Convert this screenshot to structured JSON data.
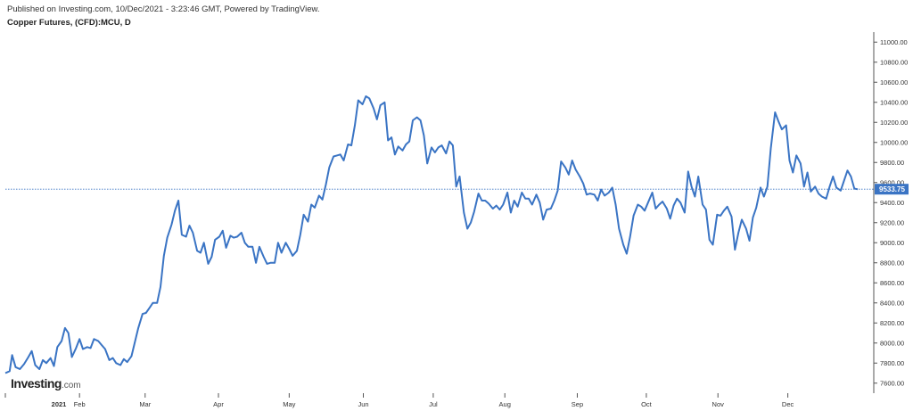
{
  "header": {
    "published": "Published on Investing.com, 10/Dec/2021 - 3:23:46 GMT, Powered by TradingView.",
    "title": "Copper Futures, (CFD):MCU, D"
  },
  "logo": {
    "main": "Investing",
    "suffix": ".com"
  },
  "colors": {
    "line": "#3a74c4",
    "price_label_bg": "#3a74c4",
    "axis": "#555555",
    "last_price_line": "#3a74c4"
  },
  "chart_data": {
    "type": "line",
    "title": "Copper Futures, (CFD):MCU, D",
    "xlabel": "",
    "ylabel": "",
    "ylim": [
      7500,
      11100
    ],
    "yticks": [
      "7600.00",
      "7800.00",
      "8000.00",
      "8200.00",
      "8400.00",
      "8600.00",
      "8800.00",
      "9000.00",
      "9200.00",
      "9400.00",
      "9600.00",
      "9800.00",
      "10000.00",
      "10200.00",
      "10400.00",
      "10600.00",
      "10800.00",
      "11000.00"
    ],
    "xlim": [
      0,
      1
    ],
    "xticks": [
      {
        "label": "2021",
        "pos": 0.0,
        "bold": true
      },
      {
        "label": "Feb",
        "pos": 0.087
      },
      {
        "label": "Mar",
        "pos": 0.164
      },
      {
        "label": "Apr",
        "pos": 0.25
      },
      {
        "label": "May",
        "pos": 0.333
      },
      {
        "label": "Jun",
        "pos": 0.42
      },
      {
        "label": "Jul",
        "pos": 0.502
      },
      {
        "label": "Aug",
        "pos": 0.586
      },
      {
        "label": "Sep",
        "pos": 0.671
      },
      {
        "label": "Oct",
        "pos": 0.752
      },
      {
        "label": "Nov",
        "pos": 0.836
      },
      {
        "label": "Dec",
        "pos": 0.918
      }
    ],
    "last_price": "9533.75",
    "series": [
      {
        "values": [
          [
            0.0,
            7700
          ],
          [
            0.005,
            7720
          ],
          [
            0.008,
            7880
          ],
          [
            0.012,
            7760
          ],
          [
            0.017,
            7740
          ],
          [
            0.022,
            7790
          ],
          [
            0.027,
            7860
          ],
          [
            0.031,
            7920
          ],
          [
            0.035,
            7780
          ],
          [
            0.04,
            7740
          ],
          [
            0.044,
            7830
          ],
          [
            0.048,
            7800
          ],
          [
            0.053,
            7850
          ],
          [
            0.057,
            7770
          ],
          [
            0.061,
            7960
          ],
          [
            0.066,
            8020
          ],
          [
            0.07,
            8150
          ],
          [
            0.074,
            8100
          ],
          [
            0.078,
            7860
          ],
          [
            0.083,
            7950
          ],
          [
            0.087,
            8040
          ],
          [
            0.091,
            7940
          ],
          [
            0.096,
            7960
          ],
          [
            0.1,
            7950
          ],
          [
            0.104,
            8040
          ],
          [
            0.109,
            8020
          ],
          [
            0.113,
            7980
          ],
          [
            0.117,
            7940
          ],
          [
            0.122,
            7830
          ],
          [
            0.126,
            7850
          ],
          [
            0.13,
            7800
          ],
          [
            0.135,
            7780
          ],
          [
            0.139,
            7840
          ],
          [
            0.143,
            7810
          ],
          [
            0.148,
            7870
          ],
          [
            0.152,
            8010
          ],
          [
            0.156,
            8150
          ],
          [
            0.161,
            8290
          ],
          [
            0.165,
            8300
          ],
          [
            0.169,
            8350
          ],
          [
            0.173,
            8400
          ],
          [
            0.178,
            8400
          ],
          [
            0.182,
            8560
          ],
          [
            0.186,
            8870
          ],
          [
            0.19,
            9050
          ],
          [
            0.195,
            9180
          ],
          [
            0.199,
            9320
          ],
          [
            0.203,
            9420
          ],
          [
            0.207,
            9080
          ],
          [
            0.212,
            9060
          ],
          [
            0.216,
            9170
          ],
          [
            0.22,
            9100
          ],
          [
            0.225,
            8920
          ],
          [
            0.229,
            8900
          ],
          [
            0.233,
            9000
          ],
          [
            0.238,
            8790
          ],
          [
            0.242,
            8860
          ],
          [
            0.246,
            9030
          ],
          [
            0.251,
            9060
          ],
          [
            0.255,
            9120
          ],
          [
            0.259,
            8950
          ],
          [
            0.264,
            9070
          ],
          [
            0.268,
            9050
          ],
          [
            0.272,
            9060
          ],
          [
            0.277,
            9100
          ],
          [
            0.281,
            9000
          ],
          [
            0.285,
            8960
          ],
          [
            0.29,
            8960
          ],
          [
            0.294,
            8800
          ],
          [
            0.298,
            8960
          ],
          [
            0.303,
            8860
          ],
          [
            0.307,
            8790
          ],
          [
            0.311,
            8800
          ],
          [
            0.316,
            8800
          ],
          [
            0.32,
            9000
          ],
          [
            0.324,
            8900
          ],
          [
            0.329,
            9000
          ],
          [
            0.333,
            8940
          ],
          [
            0.337,
            8870
          ],
          [
            0.342,
            8920
          ],
          [
            0.346,
            9080
          ],
          [
            0.35,
            9280
          ],
          [
            0.355,
            9210
          ],
          [
            0.359,
            9380
          ],
          [
            0.363,
            9350
          ],
          [
            0.368,
            9470
          ],
          [
            0.372,
            9430
          ],
          [
            0.376,
            9580
          ],
          [
            0.38,
            9750
          ],
          [
            0.385,
            9860
          ],
          [
            0.389,
            9870
          ],
          [
            0.393,
            9880
          ],
          [
            0.397,
            9820
          ],
          [
            0.402,
            9980
          ],
          [
            0.406,
            9970
          ],
          [
            0.41,
            10170
          ],
          [
            0.414,
            10420
          ],
          [
            0.419,
            10380
          ],
          [
            0.423,
            10460
          ],
          [
            0.427,
            10440
          ],
          [
            0.432,
            10340
          ],
          [
            0.436,
            10230
          ],
          [
            0.44,
            10370
          ],
          [
            0.445,
            10400
          ],
          [
            0.449,
            10020
          ],
          [
            0.453,
            10050
          ],
          [
            0.457,
            9880
          ],
          [
            0.461,
            9960
          ],
          [
            0.466,
            9920
          ],
          [
            0.47,
            9980
          ],
          [
            0.474,
            10010
          ],
          [
            0.478,
            10220
          ],
          [
            0.483,
            10250
          ],
          [
            0.487,
            10220
          ],
          [
            0.491,
            10070
          ],
          [
            0.495,
            9790
          ],
          [
            0.5,
            9950
          ],
          [
            0.504,
            9900
          ],
          [
            0.508,
            9950
          ],
          [
            0.512,
            9970
          ],
          [
            0.517,
            9890
          ],
          [
            0.521,
            10010
          ],
          [
            0.525,
            9970
          ],
          [
            0.529,
            9560
          ],
          [
            0.533,
            9660
          ],
          [
            0.538,
            9300
          ],
          [
            0.542,
            9140
          ],
          [
            0.546,
            9200
          ],
          [
            0.55,
            9310
          ],
          [
            0.555,
            9490
          ],
          [
            0.559,
            9420
          ],
          [
            0.563,
            9420
          ],
          [
            0.567,
            9390
          ],
          [
            0.572,
            9340
          ],
          [
            0.576,
            9370
          ],
          [
            0.58,
            9330
          ],
          [
            0.584,
            9380
          ],
          [
            0.589,
            9500
          ],
          [
            0.593,
            9300
          ],
          [
            0.597,
            9420
          ],
          [
            0.601,
            9360
          ],
          [
            0.606,
            9500
          ],
          [
            0.61,
            9440
          ],
          [
            0.614,
            9440
          ],
          [
            0.618,
            9380
          ],
          [
            0.623,
            9480
          ],
          [
            0.627,
            9400
          ],
          [
            0.631,
            9230
          ],
          [
            0.635,
            9330
          ],
          [
            0.64,
            9340
          ],
          [
            0.644,
            9420
          ],
          [
            0.648,
            9520
          ],
          [
            0.652,
            9810
          ],
          [
            0.657,
            9750
          ],
          [
            0.661,
            9680
          ],
          [
            0.665,
            9820
          ],
          [
            0.669,
            9730
          ],
          [
            0.674,
            9660
          ],
          [
            0.678,
            9590
          ],
          [
            0.682,
            9480
          ],
          [
            0.686,
            9490
          ],
          [
            0.691,
            9480
          ],
          [
            0.695,
            9420
          ],
          [
            0.699,
            9530
          ],
          [
            0.703,
            9470
          ],
          [
            0.708,
            9500
          ],
          [
            0.712,
            9550
          ],
          [
            0.716,
            9380
          ],
          [
            0.72,
            9140
          ],
          [
            0.725,
            8980
          ],
          [
            0.729,
            8890
          ],
          [
            0.733,
            9060
          ],
          [
            0.737,
            9270
          ],
          [
            0.742,
            9380
          ],
          [
            0.746,
            9360
          ],
          [
            0.75,
            9320
          ],
          [
            0.754,
            9400
          ],
          [
            0.759,
            9500
          ],
          [
            0.763,
            9340
          ],
          [
            0.767,
            9380
          ],
          [
            0.771,
            9410
          ],
          [
            0.776,
            9340
          ],
          [
            0.78,
            9240
          ],
          [
            0.784,
            9370
          ],
          [
            0.788,
            9440
          ],
          [
            0.792,
            9400
          ],
          [
            0.797,
            9300
          ],
          [
            0.801,
            9710
          ],
          [
            0.805,
            9560
          ],
          [
            0.809,
            9460
          ],
          [
            0.813,
            9660
          ],
          [
            0.818,
            9380
          ],
          [
            0.822,
            9330
          ],
          [
            0.826,
            9030
          ],
          [
            0.83,
            8980
          ],
          [
            0.835,
            9280
          ],
          [
            0.839,
            9270
          ],
          [
            0.843,
            9320
          ],
          [
            0.847,
            9360
          ],
          [
            0.852,
            9260
          ],
          [
            0.856,
            8930
          ],
          [
            0.86,
            9100
          ],
          [
            0.864,
            9230
          ],
          [
            0.869,
            9140
          ],
          [
            0.873,
            9020
          ],
          [
            0.877,
            9250
          ],
          [
            0.881,
            9350
          ],
          [
            0.886,
            9550
          ],
          [
            0.89,
            9460
          ],
          [
            0.894,
            9560
          ],
          [
            0.898,
            9940
          ],
          [
            0.903,
            10300
          ],
          [
            0.907,
            10210
          ],
          [
            0.911,
            10130
          ],
          [
            0.916,
            10170
          ],
          [
            0.92,
            9820
          ],
          [
            0.924,
            9700
          ],
          [
            0.928,
            9870
          ],
          [
            0.933,
            9790
          ],
          [
            0.937,
            9560
          ],
          [
            0.941,
            9700
          ],
          [
            0.945,
            9510
          ],
          [
            0.95,
            9560
          ],
          [
            0.954,
            9490
          ],
          [
            0.958,
            9460
          ],
          [
            0.963,
            9440
          ],
          [
            0.967,
            9560
          ],
          [
            0.971,
            9660
          ],
          [
            0.975,
            9550
          ],
          [
            0.98,
            9520
          ],
          [
            0.984,
            9620
          ],
          [
            0.988,
            9720
          ],
          [
            0.992,
            9660
          ],
          [
            0.996,
            9540
          ],
          [
            1.0,
            9533
          ]
        ]
      }
    ]
  }
}
